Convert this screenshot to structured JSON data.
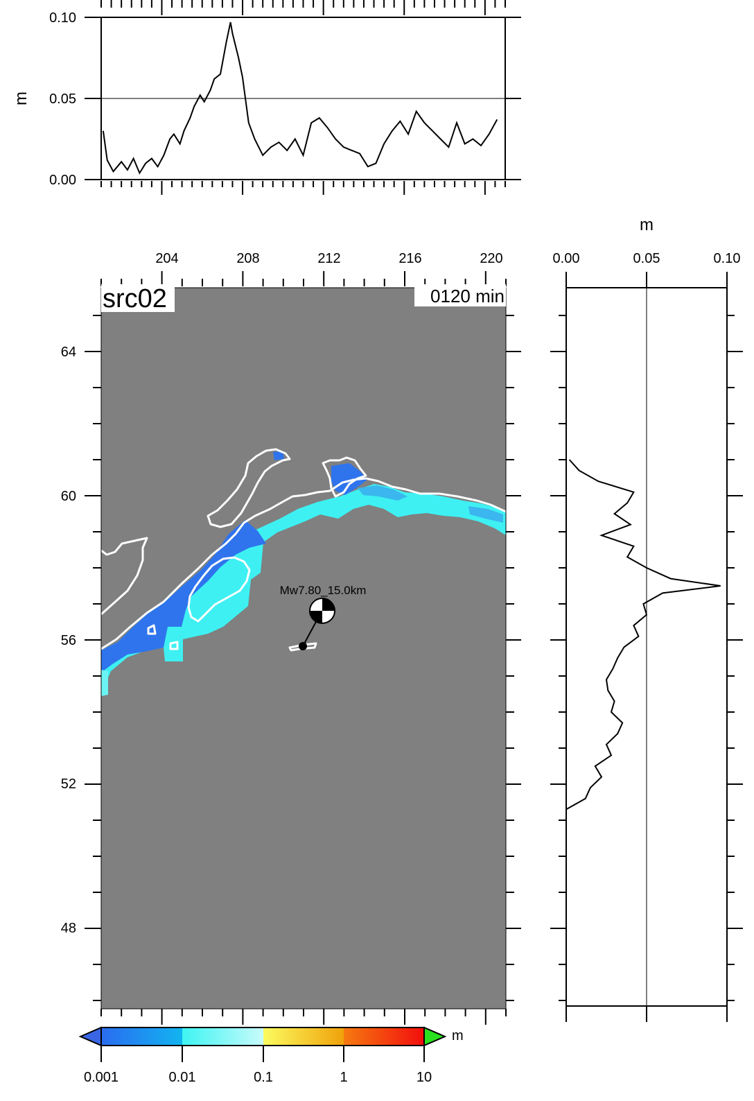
{
  "chart_data": [
    {
      "type": "line",
      "panel": "top-profile",
      "ylabel": "m",
      "ylim": [
        0,
        0.1
      ],
      "xlim": [
        201,
        221
      ],
      "y_ticks": [
        "0.00",
        "0.05",
        "0.10"
      ],
      "series": [
        {
          "x": [
            201.1,
            201.3,
            201.6,
            202.0,
            202.3,
            202.6,
            202.9,
            203.2,
            203.5,
            203.8,
            204.1,
            204.4,
            204.6,
            204.9,
            205.1,
            205.4,
            205.6,
            205.9,
            206.1,
            206.4,
            206.6,
            206.9,
            207.2,
            207.4,
            207.5,
            207.8,
            208.0,
            208.3,
            208.6,
            209.0,
            209.4,
            209.8,
            210.2,
            210.6,
            211.0,
            211.4,
            211.8,
            212.2,
            212.6,
            213.0,
            213.4,
            213.8,
            214.2,
            214.6,
            215.0,
            215.4,
            215.8,
            216.2,
            216.6,
            217.0,
            217.4,
            217.8,
            218.2,
            218.6,
            219.0,
            219.4,
            219.8,
            220.2,
            220.6
          ],
          "y": [
            0.03,
            0.012,
            0.005,
            0.011,
            0.006,
            0.013,
            0.004,
            0.01,
            0.013,
            0.008,
            0.015,
            0.025,
            0.028,
            0.022,
            0.03,
            0.038,
            0.045,
            0.052,
            0.048,
            0.055,
            0.062,
            0.065,
            0.085,
            0.097,
            0.09,
            0.075,
            0.063,
            0.035,
            0.025,
            0.015,
            0.02,
            0.023,
            0.018,
            0.025,
            0.015,
            0.035,
            0.038,
            0.032,
            0.025,
            0.02,
            0.018,
            0.016,
            0.008,
            0.01,
            0.022,
            0.03,
            0.036,
            0.028,
            0.042,
            0.035,
            0.03,
            0.025,
            0.02,
            0.035,
            0.022,
            0.025,
            0.021,
            0.028,
            0.037
          ]
        }
      ]
    },
    {
      "type": "line",
      "panel": "right-profile",
      "xlabel": "m",
      "xlim": [
        0,
        0.1
      ],
      "ylim": [
        46,
        66
      ],
      "x_ticks": [
        "0.00",
        "0.05",
        "0.10"
      ],
      "series": [
        {
          "y": [
            51.3,
            51.6,
            51.9,
            52.2,
            52.5,
            52.8,
            53.1,
            53.4,
            53.7,
            54.0,
            54.3,
            54.6,
            54.9,
            55.2,
            55.5,
            55.8,
            56.1,
            56.4,
            56.7,
            57.0,
            57.3,
            57.5,
            57.7,
            58.0,
            58.3,
            58.6,
            58.9,
            59.2,
            59.5,
            59.8,
            60.1,
            60.4,
            60.7,
            61.0
          ],
          "x": [
            0.0,
            0.012,
            0.015,
            0.022,
            0.018,
            0.028,
            0.025,
            0.032,
            0.035,
            0.028,
            0.03,
            0.026,
            0.025,
            0.029,
            0.032,
            0.036,
            0.045,
            0.042,
            0.05,
            0.048,
            0.06,
            0.096,
            0.065,
            0.05,
            0.038,
            0.042,
            0.022,
            0.04,
            0.03,
            0.038,
            0.042,
            0.02,
            0.008,
            0.002
          ]
        }
      ]
    },
    {
      "type": "heatmap",
      "panel": "map",
      "x_ticks": [
        "204",
        "208",
        "212",
        "216",
        "220"
      ],
      "y_ticks": [
        "48",
        "52",
        "56",
        "60",
        "64"
      ],
      "xlim": [
        201,
        221
      ],
      "ylim": [
        46,
        66
      ],
      "event": {
        "label": "Mw7.80_15.0km",
        "lon": 210.8,
        "lat": 55.8
      }
    }
  ],
  "map": {
    "source_label": "src02",
    "time_label": "0120 min"
  },
  "colorbar": {
    "unit": "m",
    "tick_labels": [
      "0.001",
      "0.01",
      "0.1",
      "1",
      "10"
    ],
    "segments": [
      {
        "from": "#2a6cf0",
        "to": "#12b4f0"
      },
      {
        "from": "#3ef4f2",
        "to": "#c8fbfa"
      },
      {
        "from": "#fbfb60",
        "to": "#f0a20a"
      },
      {
        "from": "#f67a10",
        "to": "#f20d0d"
      }
    ],
    "under_color": "#3a66e6",
    "over_color": "#2ae01e"
  },
  "colors": {
    "ocean": "#808080",
    "coast": "#ffffff",
    "wave_deep": "#2f74ec",
    "wave_mid": "#3ecbf1",
    "wave_light": "#6cf4f4"
  }
}
